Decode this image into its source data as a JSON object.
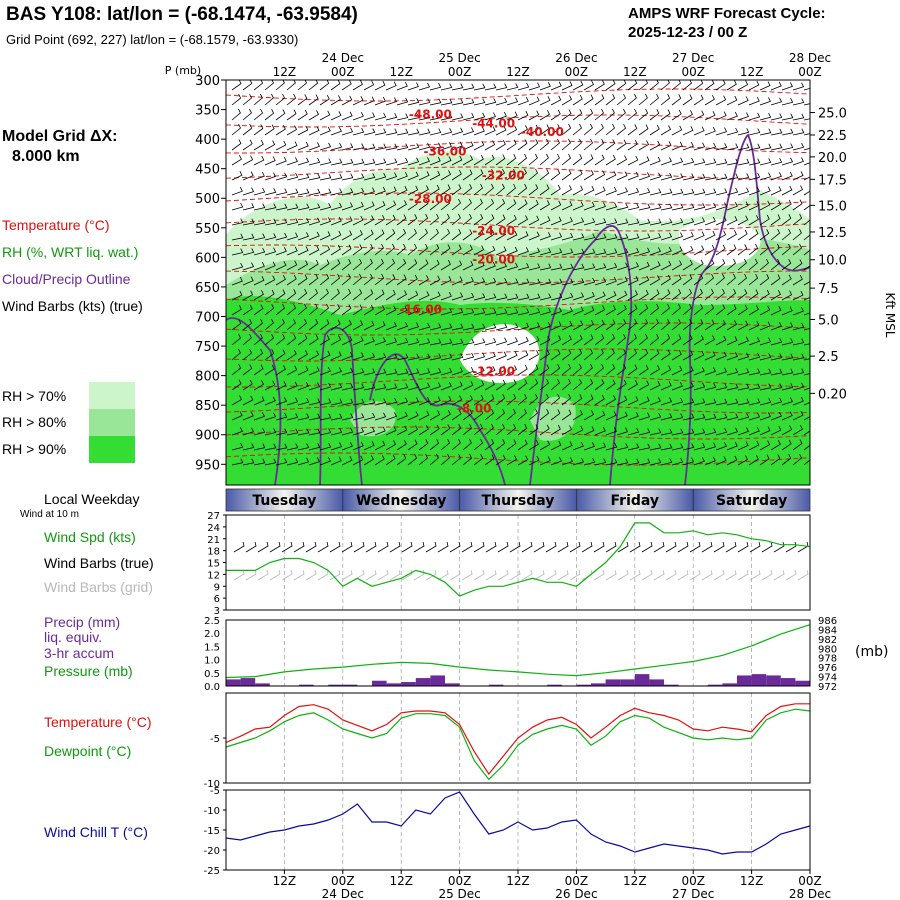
{
  "header": {
    "title": "BAS Y108:  lat/lon = (-68.1474, -63.9584)",
    "subtitle": "Grid Point (692, 227) lat/lon = (-68.1579, -63.9330)",
    "cycle_line1": "AMPS WRF Forecast Cycle:",
    "cycle_line2": "2025-12-23 / 00  Z"
  },
  "colors": {
    "temperature": "#e01010",
    "dewpoint": "#10b010",
    "wind_speed": "#10b010",
    "pressure": "#10b010",
    "precip": "#6a2a9a",
    "cloud_outline": "#6a2a9a",
    "wind_chill": "#0a0aa0",
    "rh70": "#ccf5cc",
    "rh80": "#99e699",
    "rh90": "#33dd33"
  },
  "left_panel": {
    "model_grid_label": "Model Grid ΔX:",
    "model_grid_value": "8.000 km",
    "legend_temperature": "Temperature (°C)",
    "legend_rh": "RH (%, WRT liq. wat.)",
    "legend_cloud": "Cloud/Precip Outline",
    "legend_wind": "Wind Barbs (kts) (true)",
    "rh_70": "RH > 70%",
    "rh_80": "RH > 80%",
    "rh_90": "RH > 90%",
    "local_weekday": "Local Weekday",
    "wind_10m": "Wind at 10 m",
    "wind_spd": "Wind Spd (kts)",
    "wind_barbs_true": "Wind Barbs (true)",
    "wind_barbs_grid": "Wind Barbs (grid)",
    "precip_1": "Precip (mm)",
    "precip_2": "liq. equiv.",
    "precip_3": "3-hr accum",
    "pressure": "Pressure (mb)",
    "temperature": "Temperature (°C)",
    "dewpoint": "Dewpoint (°C)",
    "wind_chill": "Wind Chill T (°C)"
  },
  "time_axis": {
    "hours": [
      0,
      120
    ],
    "tick_labels": [
      {
        "h": 12,
        "label": "12Z"
      },
      {
        "h": 24,
        "label": "00Z",
        "date": "24 Dec"
      },
      {
        "h": 36,
        "label": "12Z"
      },
      {
        "h": 48,
        "label": "00Z",
        "date": "25 Dec"
      },
      {
        "h": 60,
        "label": "12Z"
      },
      {
        "h": 72,
        "label": "00Z",
        "date": "26 Dec"
      },
      {
        "h": 84,
        "label": "12Z"
      },
      {
        "h": 96,
        "label": "00Z",
        "date": "27 Dec"
      },
      {
        "h": 108,
        "label": "12Z"
      },
      {
        "h": 120,
        "label": "00Z",
        "date": "28 Dec"
      }
    ]
  },
  "weekdays": [
    {
      "label": "Tuesday",
      "start": 0,
      "end": 24
    },
    {
      "label": "Wednesday",
      "start": 24,
      "end": 48
    },
    {
      "label": "Thursday",
      "start": 48,
      "end": 72
    },
    {
      "label": "Friday",
      "start": 72,
      "end": 96
    },
    {
      "label": "Saturday",
      "start": 96,
      "end": 120
    }
  ],
  "chart_data": [
    {
      "type": "heatmap",
      "name": "cross_section",
      "ylabel": "P (mb)",
      "ylabel_right": "Kft MSL",
      "pressure_ticks": [
        300,
        350,
        400,
        450,
        500,
        550,
        600,
        650,
        700,
        750,
        800,
        850,
        900,
        950
      ],
      "height_ticks": [
        {
          "p": 355,
          "label": "25.0"
        },
        {
          "p": 393,
          "label": "22.5"
        },
        {
          "p": 430,
          "label": "20.0"
        },
        {
          "p": 468,
          "label": "17.5"
        },
        {
          "p": 512,
          "label": "15.0"
        },
        {
          "p": 557,
          "label": "12.5"
        },
        {
          "p": 604,
          "label": "10.0"
        },
        {
          "p": 652,
          "label": "7.5"
        },
        {
          "p": 705,
          "label": "5.0"
        },
        {
          "p": 767,
          "label": "2.5"
        },
        {
          "p": 830,
          "label": "0.20"
        }
      ],
      "temperature_contour_labels": [
        {
          "label": "-48.00",
          "h": 42,
          "p": 365
        },
        {
          "label": "-44.00",
          "h": 55,
          "p": 380
        },
        {
          "label": "-40.00",
          "h": 65,
          "p": 395
        },
        {
          "label": "-36.00",
          "h": 45,
          "p": 428
        },
        {
          "label": "-32.00",
          "h": 57,
          "p": 468
        },
        {
          "label": "-28.00",
          "h": 42,
          "p": 508
        },
        {
          "label": "-24.00",
          "h": 55,
          "p": 562
        },
        {
          "label": "-20.00",
          "h": 55,
          "p": 610
        },
        {
          "label": "-16.00",
          "h": 40,
          "p": 695
        },
        {
          "label": "-12.00",
          "h": 55,
          "p": 800
        },
        {
          "label": "-8.00",
          "h": 51,
          "p": 862
        }
      ]
    },
    {
      "type": "line",
      "name": "wind_speed",
      "yticks": [
        3,
        6,
        9,
        12,
        15,
        18,
        21,
        24,
        27
      ],
      "ylim": [
        3,
        27
      ],
      "series": [
        {
          "name": "Wind Spd (kts)",
          "x": [
            0,
            3,
            6,
            9,
            12,
            15,
            18,
            21,
            24,
            27,
            30,
            33,
            36,
            39,
            42,
            45,
            48,
            51,
            54,
            57,
            60,
            63,
            66,
            69,
            72,
            75,
            78,
            81,
            84,
            87,
            90,
            93,
            96,
            99,
            102,
            105,
            108,
            111,
            114,
            117,
            120
          ],
          "values": [
            13,
            13,
            13,
            15,
            16,
            16,
            15,
            13,
            9,
            11,
            9,
            10,
            11,
            13,
            12,
            10,
            6.5,
            8,
            9,
            9,
            10,
            11,
            10,
            10,
            9,
            12,
            15,
            19,
            25,
            25,
            22.5,
            22.5,
            23,
            22,
            22.5,
            22,
            21,
            20.5,
            19.5,
            19.5,
            19
          ]
        }
      ]
    },
    {
      "type": "bar",
      "name": "precip_pressure",
      "yticks_left": [
        0.0,
        0.5,
        1.0,
        1.5,
        2.0,
        2.5
      ],
      "ylim_left": [
        0,
        2.5
      ],
      "yticks_right": [
        972,
        974,
        976,
        978,
        980,
        982,
        984,
        986
      ],
      "ylim_right": [
        972,
        986
      ],
      "right_unit": "(mb)",
      "precip": {
        "x": [
          0,
          3,
          6,
          9,
          12,
          15,
          18,
          21,
          24,
          27,
          30,
          33,
          36,
          39,
          42,
          45,
          48,
          51,
          54,
          57,
          60,
          63,
          66,
          69,
          72,
          75,
          78,
          81,
          84,
          87,
          90,
          93,
          96,
          99,
          102,
          105,
          108,
          111,
          114,
          117
        ],
        "values": [
          0.25,
          0.3,
          0.1,
          0.02,
          0.02,
          0.05,
          0.02,
          0.05,
          0.05,
          0.02,
          0.2,
          0.1,
          0.15,
          0.3,
          0.4,
          0.1,
          0.02,
          0.02,
          0.05,
          0.02,
          0.02,
          0.02,
          0.05,
          0.02,
          0.05,
          0.1,
          0.25,
          0.25,
          0.45,
          0.25,
          0.05,
          0.02,
          0.02,
          0.05,
          0.1,
          0.4,
          0.45,
          0.4,
          0.3,
          0.2
        ]
      },
      "pressure": {
        "x": [
          0,
          6,
          12,
          18,
          24,
          30,
          36,
          42,
          48,
          54,
          60,
          66,
          72,
          78,
          84,
          90,
          96,
          102,
          108,
          114,
          120
        ],
        "values": [
          973.8,
          974.0,
          975.0,
          975.6,
          976.0,
          976.6,
          977.0,
          976.8,
          976.0,
          975.4,
          975.0,
          974.5,
          974.2,
          974.8,
          975.6,
          976.4,
          977.2,
          978.5,
          980.5,
          983.0,
          985.0
        ]
      }
    },
    {
      "type": "line",
      "name": "temperature_dewpoint",
      "yticks": [
        -10,
        -5
      ],
      "ylim": [
        -10,
        0
      ],
      "series": [
        {
          "name": "Temperature (°C)",
          "x": [
            0,
            3,
            6,
            9,
            12,
            15,
            18,
            21,
            24,
            27,
            30,
            33,
            36,
            39,
            42,
            45,
            48,
            51,
            54,
            57,
            60,
            63,
            66,
            69,
            72,
            75,
            78,
            81,
            84,
            87,
            90,
            93,
            96,
            99,
            102,
            105,
            108,
            111,
            114,
            117,
            120
          ],
          "values": [
            -5.5,
            -4.8,
            -4,
            -3.8,
            -2.5,
            -1.5,
            -1.3,
            -1.8,
            -3,
            -3.6,
            -4.2,
            -3.5,
            -2.2,
            -2,
            -2,
            -2.2,
            -3.5,
            -6.5,
            -9.0,
            -7.0,
            -5.0,
            -3.8,
            -3,
            -2.7,
            -3.5,
            -5,
            -3.8,
            -2.5,
            -1.7,
            -2.2,
            -2.5,
            -3.0,
            -4.0,
            -4.2,
            -3.8,
            -4.0,
            -4.3,
            -2.5,
            -1.5,
            -1.2,
            -1.2
          ]
        },
        {
          "name": "Dewpoint (°C)",
          "x": [
            0,
            3,
            6,
            9,
            12,
            15,
            18,
            21,
            24,
            27,
            30,
            33,
            36,
            39,
            42,
            45,
            48,
            51,
            54,
            57,
            60,
            63,
            66,
            69,
            72,
            75,
            78,
            81,
            84,
            87,
            90,
            93,
            96,
            99,
            102,
            105,
            108,
            111,
            114,
            117,
            120
          ],
          "values": [
            -6,
            -5.5,
            -5,
            -4.2,
            -3.2,
            -2.5,
            -2.2,
            -3,
            -4,
            -4.5,
            -5,
            -4.5,
            -2.8,
            -2.3,
            -2.3,
            -2.5,
            -3.8,
            -7.5,
            -9.6,
            -8.0,
            -5.8,
            -4.6,
            -4.0,
            -3.6,
            -4,
            -5.8,
            -4.8,
            -3.2,
            -2.5,
            -2.8,
            -3.8,
            -4.4,
            -5.0,
            -5.2,
            -5.0,
            -5.2,
            -5.0,
            -3.0,
            -2.2,
            -1.8,
            -2.0
          ]
        }
      ]
    },
    {
      "type": "line",
      "name": "wind_chill",
      "yticks": [
        -5,
        -10,
        -15,
        -20,
        -25
      ],
      "ylim": [
        -25,
        -5
      ],
      "series": [
        {
          "name": "Wind Chill T (°C)",
          "x": [
            0,
            3,
            6,
            9,
            12,
            15,
            18,
            21,
            24,
            27,
            30,
            33,
            36,
            39,
            42,
            45,
            48,
            51,
            54,
            57,
            60,
            63,
            66,
            69,
            72,
            75,
            78,
            81,
            84,
            87,
            90,
            93,
            96,
            99,
            102,
            105,
            108,
            111,
            114,
            117,
            120
          ],
          "values": [
            -17,
            -17.5,
            -16.5,
            -15.5,
            -15,
            -14,
            -13.5,
            -12.5,
            -11,
            -8.5,
            -13,
            -13,
            -14,
            -10,
            -11,
            -7,
            -5.5,
            -11,
            -16,
            -15,
            -13,
            -15,
            -14.5,
            -13,
            -12.5,
            -16,
            -18,
            -19,
            -20.5,
            -19.5,
            -18.5,
            -19,
            -19.5,
            -20,
            -21,
            -20.5,
            -20.5,
            -18.5,
            -16,
            -15,
            -14
          ]
        }
      ]
    }
  ]
}
